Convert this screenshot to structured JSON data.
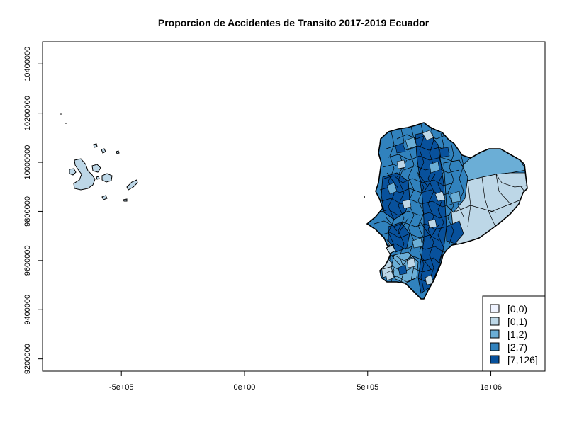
{
  "title": "Proporcion de Accidentes de Transito 2017-2019 Ecuador",
  "x_axis": {
    "ticks": [
      {
        "value": -500000,
        "label": "-5e+05"
      },
      {
        "value": 0,
        "label": "0e+00"
      },
      {
        "value": 500000,
        "label": "5e+05"
      },
      {
        "value": 1000000,
        "label": "1e+06"
      }
    ],
    "range": [
      -820000,
      1220000
    ]
  },
  "y_axis": {
    "ticks": [
      {
        "value": 9200000,
        "label": "9200000"
      },
      {
        "value": 9400000,
        "label": "9400000"
      },
      {
        "value": 9600000,
        "label": "9600000"
      },
      {
        "value": 9800000,
        "label": "9800000"
      },
      {
        "value": 10000000,
        "label": "10000000"
      },
      {
        "value": 10200000,
        "label": "10200000"
      },
      {
        "value": 10400000,
        "label": "10400000"
      }
    ],
    "range": [
      9150000,
      10490000
    ]
  },
  "legend": {
    "placement": "bottom-right",
    "classes": [
      {
        "label": "[0,0)",
        "color": "#eff3ff"
      },
      {
        "label": "[0,1)",
        "color": "#bdd7e7"
      },
      {
        "label": "[1,2)",
        "color": "#6baed6"
      },
      {
        "label": "[2,7)",
        "color": "#3182bd"
      },
      {
        "label": "[7,126]",
        "color": "#08519c"
      }
    ]
  },
  "colors": {
    "outline": "#000000",
    "background": "#ffffff"
  }
}
